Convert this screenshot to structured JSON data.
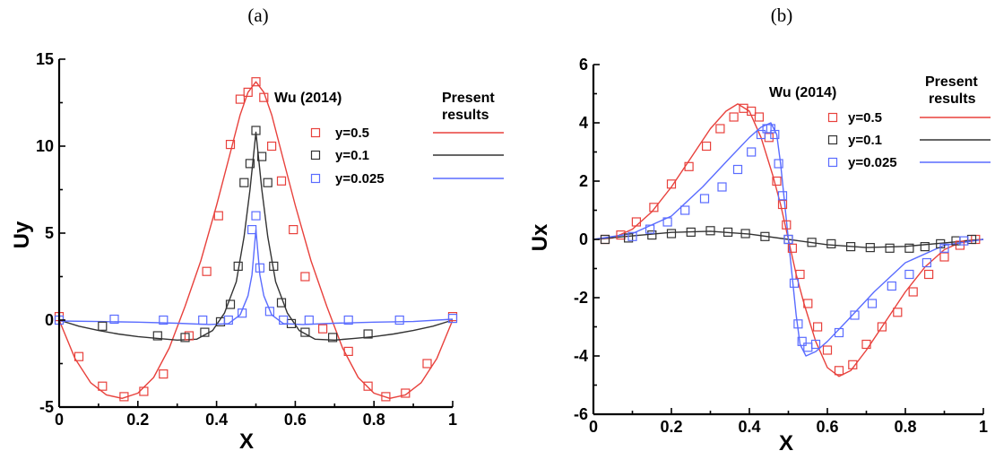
{
  "chart_data": [
    {
      "panel_label": "(a)",
      "type": "line",
      "xlabel": "X",
      "ylabel": "Uy",
      "xlim": [
        0,
        1
      ],
      "ylim": [
        -5,
        15
      ],
      "xticks": [
        0,
        0.2,
        0.4,
        0.6,
        0.8,
        1
      ],
      "xtick_labels": [
        "0",
        "0.2",
        "0.4",
        "0.6",
        "0.8",
        "1"
      ],
      "yticks": [
        -5,
        0,
        5,
        10,
        15
      ],
      "ytick_labels": [
        "-5",
        "0",
        "5",
        "10",
        "15"
      ],
      "legend": {
        "placement": "top-right",
        "scatter_header": "Wu (2014)",
        "line_header_1": "Present",
        "line_header_2": "results",
        "entries": [
          {
            "label": "y=0.5",
            "color": "#e8413c"
          },
          {
            "label": "y=0.1",
            "color": "#333333"
          },
          {
            "label": "y=0.025",
            "color": "#5a6cff"
          }
        ]
      },
      "series": [
        {
          "name": "y=0.5",
          "color": "#e8413c",
          "line": {
            "x": [
              0,
              0.04,
              0.08,
              0.12,
              0.16,
              0.2,
              0.24,
              0.28,
              0.32,
              0.36,
              0.4,
              0.43,
              0.46,
              0.48,
              0.5,
              0.52,
              0.54,
              0.57,
              0.6,
              0.64,
              0.68,
              0.72,
              0.76,
              0.8,
              0.84,
              0.88,
              0.92,
              0.96,
              1
            ],
            "y": [
              0,
              -2.2,
              -3.6,
              -4.3,
              -4.5,
              -4.2,
              -3.3,
              -1.6,
              0.8,
              3.4,
              6.6,
              9.2,
              11.8,
              13.1,
              13.7,
              13.1,
              11.8,
              9.2,
              6.6,
              3.4,
              0.8,
              -1.6,
              -3.3,
              -4.2,
              -4.5,
              -4.3,
              -3.6,
              -2.2,
              0
            ]
          },
          "markers": {
            "x": [
              0,
              0.05,
              0.11,
              0.165,
              0.215,
              0.265,
              0.33,
              0.375,
              0.405,
              0.435,
              0.46,
              0.48,
              0.5,
              0.52,
              0.54,
              0.565,
              0.595,
              0.625,
              0.67,
              0.735,
              0.785,
              0.83,
              0.88,
              0.935,
              1
            ],
            "y": [
              0.2,
              -2.1,
              -3.8,
              -4.4,
              -4.1,
              -3.1,
              -0.9,
              2.8,
              6.0,
              10.1,
              12.7,
              13.1,
              13.7,
              12.8,
              10.0,
              8.0,
              5.2,
              2.5,
              -0.5,
              -1.8,
              -3.8,
              -4.4,
              -4.2,
              -2.5,
              0.2
            ]
          }
        },
        {
          "name": "y=0.1",
          "color": "#333333",
          "line": {
            "x": [
              0,
              0.05,
              0.1,
              0.15,
              0.2,
              0.25,
              0.3,
              0.35,
              0.39,
              0.42,
              0.45,
              0.47,
              0.485,
              0.5,
              0.515,
              0.53,
              0.55,
              0.58,
              0.61,
              0.65,
              0.7,
              0.75,
              0.8,
              0.85,
              0.9,
              0.95,
              1
            ],
            "y": [
              0,
              -0.35,
              -0.6,
              -0.8,
              -0.95,
              -1.05,
              -1.15,
              -1.1,
              -0.6,
              0.4,
              2.2,
              4.8,
              7.5,
              10.8,
              7.5,
              4.8,
              2.2,
              0.4,
              -0.6,
              -1.1,
              -1.15,
              -1.05,
              -0.95,
              -0.8,
              -0.6,
              -0.35,
              0
            ]
          },
          "markers": {
            "x": [
              0.11,
              0.25,
              0.32,
              0.37,
              0.41,
              0.435,
              0.455,
              0.47,
              0.485,
              0.5,
              0.515,
              0.53,
              0.545,
              0.565,
              0.59,
              0.625,
              0.695,
              0.785
            ],
            "y": [
              -0.35,
              -0.9,
              -1.0,
              -0.7,
              -0.1,
              0.9,
              3.1,
              7.9,
              9.0,
              10.9,
              9.4,
              7.9,
              3.1,
              1.0,
              -0.2,
              -0.7,
              -1.0,
              -0.8
            ]
          }
        },
        {
          "name": "y=0.025",
          "color": "#5a6cff",
          "line": {
            "x": [
              0,
              0.1,
              0.2,
              0.3,
              0.38,
              0.43,
              0.46,
              0.48,
              0.49,
              0.5,
              0.51,
              0.52,
              0.54,
              0.57,
              0.62,
              0.7,
              0.8,
              0.9,
              1
            ],
            "y": [
              -0.05,
              -0.08,
              -0.12,
              -0.18,
              -0.25,
              -0.2,
              0.3,
              1.4,
              2.6,
              5.2,
              2.6,
              1.4,
              0.3,
              -0.2,
              -0.25,
              -0.18,
              -0.12,
              -0.08,
              0.05
            ]
          },
          "markers": {
            "x": [
              0,
              0.14,
              0.265,
              0.365,
              0.43,
              0.465,
              0.49,
              0.5,
              0.51,
              0.535,
              0.57,
              0.635,
              0.735,
              0.865,
              1
            ],
            "y": [
              0,
              0.05,
              0.0,
              0.0,
              0.0,
              0.4,
              5.2,
              6.0,
              3.0,
              0.5,
              0.0,
              0.0,
              0.0,
              0.0,
              0.1
            ]
          }
        }
      ]
    },
    {
      "panel_label": "(b)",
      "type": "line",
      "xlabel": "X",
      "ylabel": "Ux",
      "xlim": [
        0,
        1
      ],
      "ylim": [
        -6,
        6
      ],
      "xticks": [
        0,
        0.2,
        0.4,
        0.6,
        0.8,
        1
      ],
      "xtick_labels": [
        "0",
        "0.2",
        "0.4",
        "0.6",
        "0.8",
        "1"
      ],
      "yticks": [
        -6,
        -4,
        -2,
        0,
        2,
        4,
        6
      ],
      "ytick_labels": [
        "-6",
        "-4",
        "-2",
        "0",
        "2",
        "4",
        "6"
      ],
      "legend": {
        "placement": "top-right",
        "scatter_header": "Wu (2014)",
        "line_header_1": "Present",
        "line_header_2": "results",
        "entries": [
          {
            "label": "y=0.5",
            "color": "#e8413c"
          },
          {
            "label": "y=0.1",
            "color": "#333333"
          },
          {
            "label": "y=0.025",
            "color": "#5a6cff"
          }
        ]
      },
      "series": [
        {
          "name": "y=0.5",
          "color": "#e8413c",
          "line": {
            "x": [
              0,
              0.05,
              0.1,
              0.15,
              0.2,
              0.25,
              0.3,
              0.34,
              0.37,
              0.4,
              0.43,
              0.46,
              0.48,
              0.5,
              0.52,
              0.54,
              0.57,
              0.6,
              0.63,
              0.66,
              0.7,
              0.75,
              0.8,
              0.85,
              0.9,
              0.95,
              1
            ],
            "y": [
              0,
              0.05,
              0.35,
              0.95,
              1.8,
              2.8,
              3.8,
              4.4,
              4.65,
              4.4,
              3.5,
              2.2,
              1.2,
              0,
              -1.2,
              -2.2,
              -3.5,
              -4.4,
              -4.7,
              -4.5,
              -3.8,
              -2.8,
              -1.8,
              -0.95,
              -0.35,
              -0.05,
              0
            ]
          },
          "markers": {
            "x": [
              0.03,
              0.07,
              0.11,
              0.155,
              0.2,
              0.245,
              0.29,
              0.325,
              0.36,
              0.385,
              0.405,
              0.425,
              0.45,
              0.47,
              0.485,
              0.495,
              0.51,
              0.53,
              0.55,
              0.575,
              0.6,
              0.63,
              0.665,
              0.7,
              0.74,
              0.78,
              0.82,
              0.86,
              0.9,
              0.94,
              0.98
            ],
            "y": [
              0,
              0.15,
              0.6,
              1.1,
              1.9,
              2.5,
              3.2,
              3.8,
              4.2,
              4.5,
              4.4,
              4.2,
              3.5,
              2.0,
              1.2,
              0.5,
              -0.3,
              -1.2,
              -2.2,
              -3.0,
              -3.8,
              -4.5,
              -4.3,
              -3.6,
              -3.0,
              -2.5,
              -1.8,
              -1.2,
              -0.6,
              -0.2,
              0
            ]
          }
        },
        {
          "name": "y=0.1",
          "color": "#333333",
          "line": {
            "x": [
              0,
              0.1,
              0.2,
              0.3,
              0.4,
              0.5,
              0.6,
              0.7,
              0.8,
              0.9,
              1
            ],
            "y": [
              0,
              0.12,
              0.24,
              0.28,
              0.18,
              0,
              -0.18,
              -0.28,
              -0.24,
              -0.12,
              0
            ]
          },
          "markers": {
            "x": [
              0.03,
              0.09,
              0.15,
              0.2,
              0.25,
              0.3,
              0.345,
              0.39,
              0.44,
              0.5,
              0.56,
              0.61,
              0.66,
              0.71,
              0.76,
              0.81,
              0.85,
              0.89,
              0.93,
              0.97
            ],
            "y": [
              0,
              0.05,
              0.15,
              0.2,
              0.25,
              0.3,
              0.25,
              0.2,
              0.1,
              0,
              -0.1,
              -0.15,
              -0.25,
              -0.28,
              -0.3,
              -0.3,
              -0.25,
              -0.15,
              -0.05,
              0
            ]
          }
        },
        {
          "name": "y=0.025",
          "color": "#5a6cff",
          "line": {
            "x": [
              0,
              0.1,
              0.2,
              0.28,
              0.35,
              0.4,
              0.43,
              0.455,
              0.47,
              0.48,
              0.5,
              0.52,
              0.53,
              0.545,
              0.57,
              0.6,
              0.65,
              0.72,
              0.8,
              0.9,
              1
            ],
            "y": [
              0,
              0.2,
              0.8,
              1.8,
              2.8,
              3.5,
              3.85,
              4.0,
              3.6,
              2.6,
              0,
              -2.6,
              -3.6,
              -4.0,
              -3.85,
              -3.5,
              -2.8,
              -1.8,
              -0.8,
              -0.2,
              0
            ]
          },
          "markers": {
            "x": [
              0.1,
              0.145,
              0.19,
              0.235,
              0.285,
              0.33,
              0.37,
              0.405,
              0.43,
              0.445,
              0.455,
              0.465,
              0.475,
              0.485,
              0.5,
              0.515,
              0.525,
              0.535,
              0.55,
              0.57,
              0.63,
              0.67,
              0.715,
              0.765,
              0.81,
              0.855,
              0.9,
              0.95
            ],
            "y": [
              0.1,
              0.35,
              0.6,
              1.0,
              1.4,
              1.8,
              2.4,
              3.0,
              3.6,
              3.8,
              3.8,
              3.6,
              2.6,
              1.5,
              0,
              -1.5,
              -2.9,
              -3.5,
              -3.7,
              -3.6,
              -3.2,
              -2.6,
              -2.2,
              -1.6,
              -1.2,
              -0.8,
              -0.3,
              -0.05
            ]
          }
        }
      ]
    }
  ]
}
